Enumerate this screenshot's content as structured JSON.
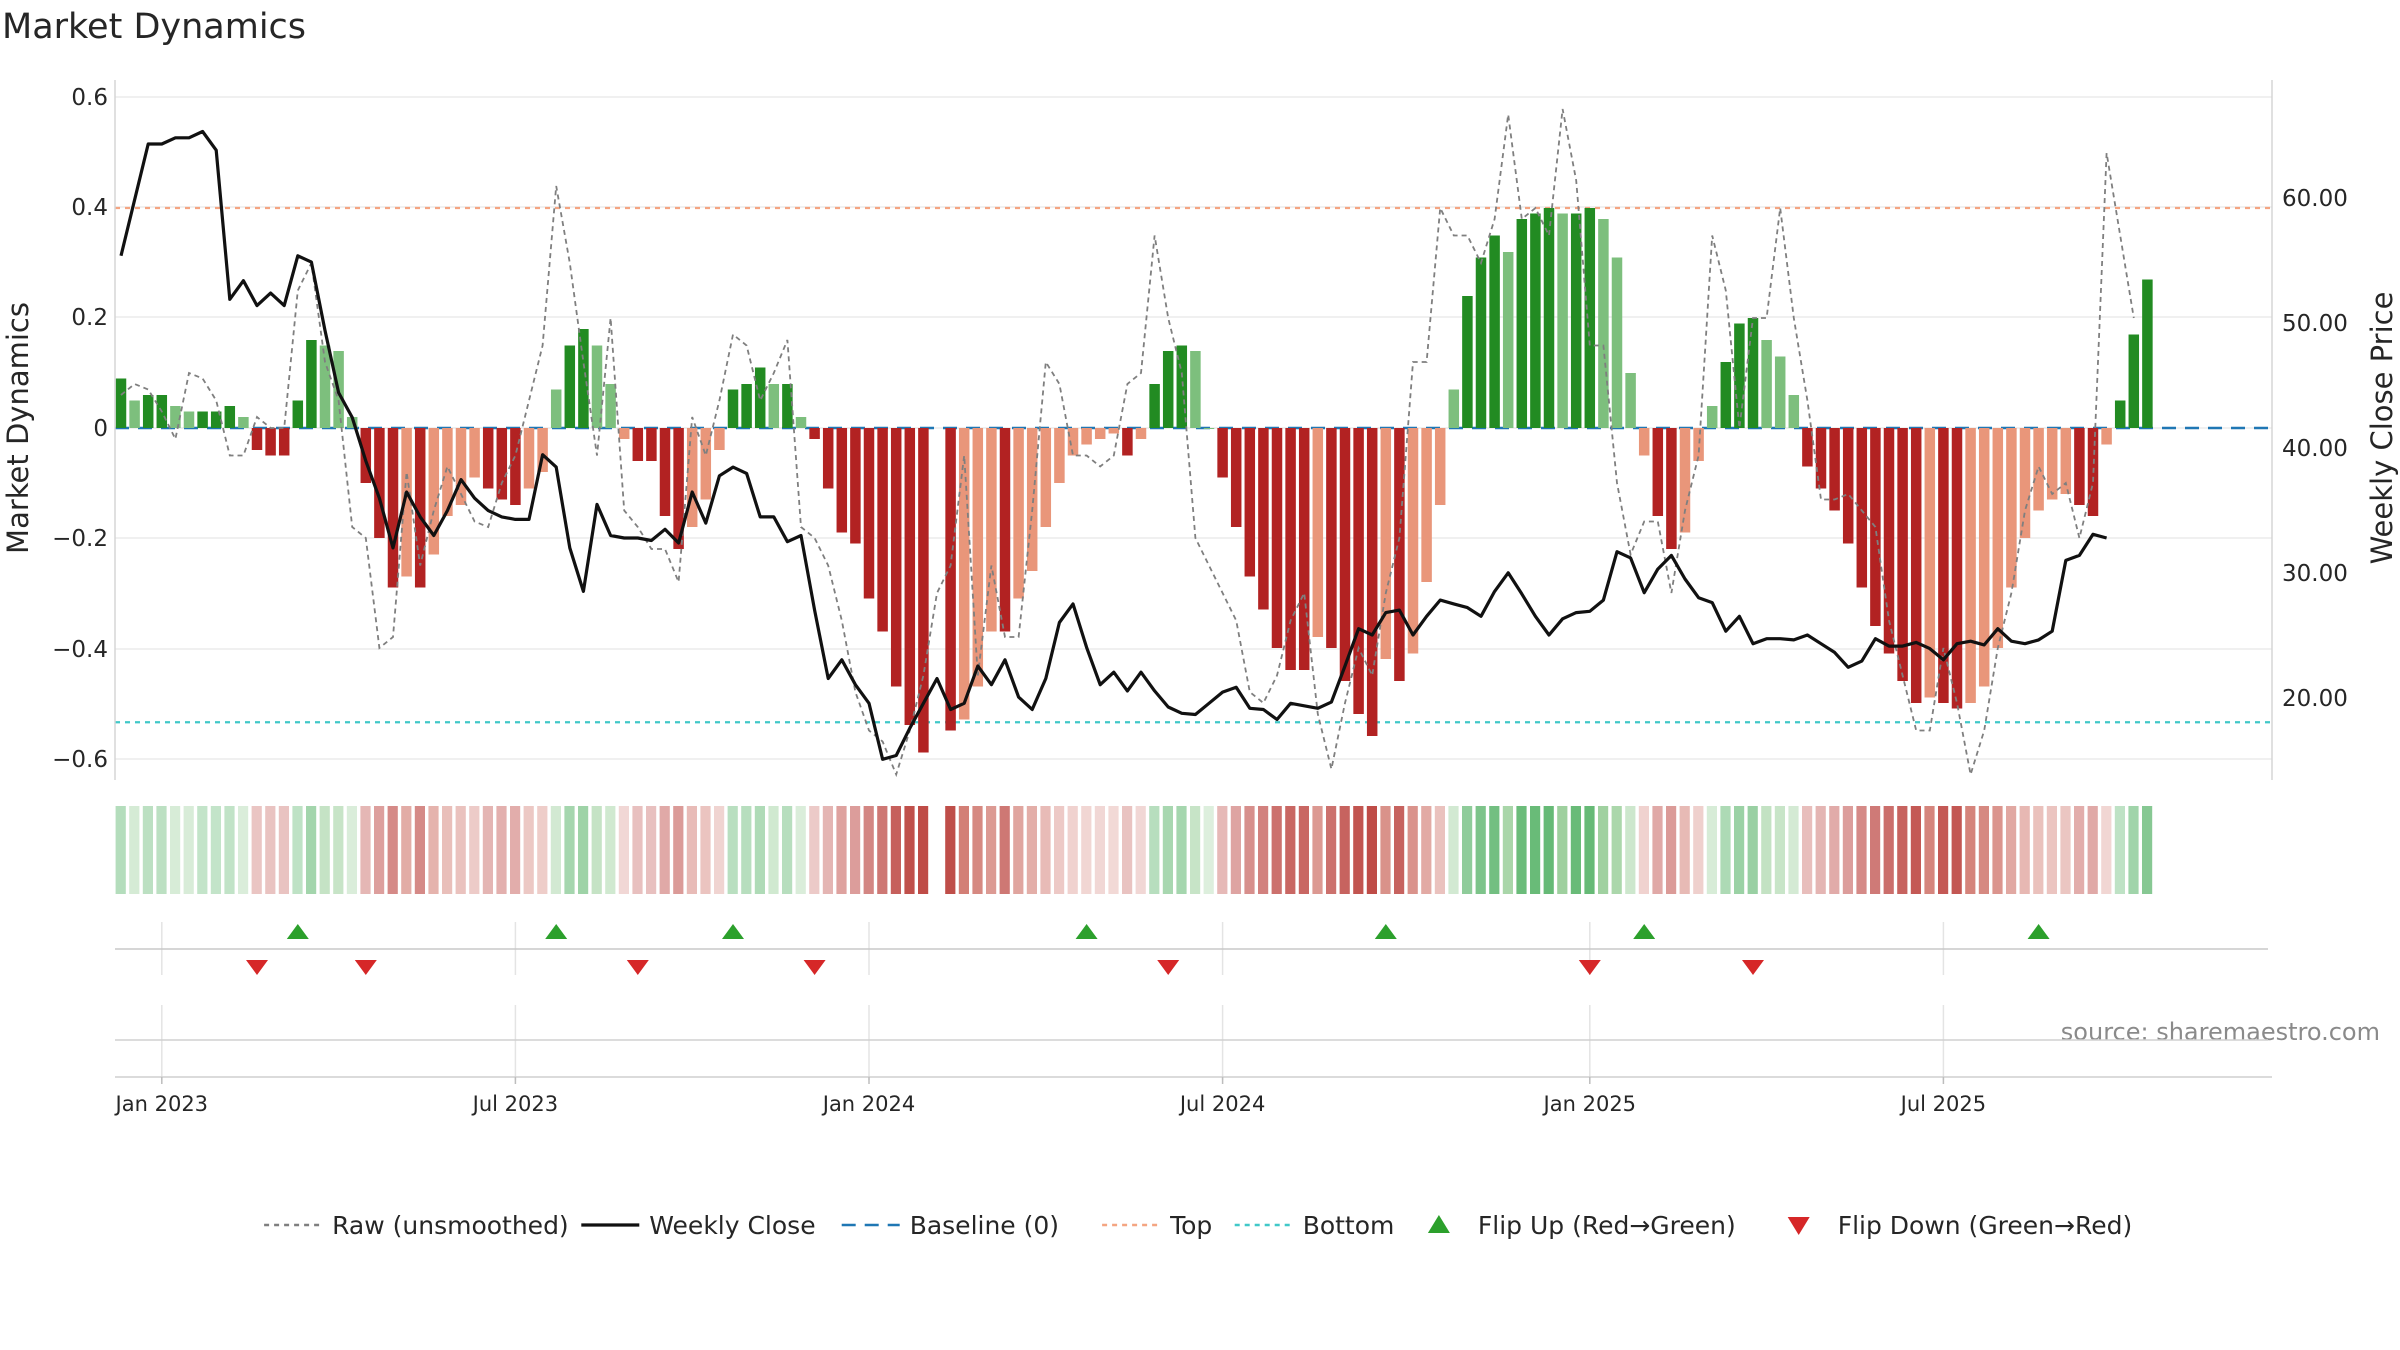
{
  "chart_data": {
    "type": "bar",
    "title": "Market Dynamics",
    "ylabel_left": "Market Dynamics",
    "ylabel_right": "Weekly Close Price",
    "source": "source: sharemaestro.com",
    "y_left_range": [
      -0.64,
      0.64
    ],
    "y_right_range": [
      12.0,
      68.0
    ],
    "y_left_ticks": [
      "0.6",
      "0.4",
      "0.2",
      "0",
      "−0.2",
      "−0.4",
      "−0.6"
    ],
    "y_right_ticks": [
      "60.00",
      "50.00",
      "40.00",
      "30.00",
      "20.00"
    ],
    "x_ticks": [
      {
        "label": "Jan 2023",
        "week": 3
      },
      {
        "label": "Jul 2023",
        "week": 29
      },
      {
        "label": "Jan 2024",
        "week": 55
      },
      {
        "label": "Jul 2024",
        "week": 81
      },
      {
        "label": "Jan 2025",
        "week": 108
      },
      {
        "label": "Jul 2025",
        "week": 134
      }
    ],
    "reference_lines": {
      "baseline": 0,
      "top": 0.4,
      "bottom": -0.535
    },
    "colors": {
      "strong_green": "#228b22",
      "light_green": "#7dbf7d",
      "strong_red": "#b22222",
      "light_red": "#e9967a",
      "raw_line": "#7f7f7f",
      "close_line": "#111111",
      "baseline": "#1f77b4",
      "top": "#f4a582",
      "bottom": "#40c8c8",
      "flip_up": "#2ca02c",
      "flip_down": "#d62728"
    },
    "series": [
      {
        "name": "Market Dynamics (smoothed)",
        "values": [
          0.09,
          0.05,
          0.06,
          0.06,
          0.04,
          0.03,
          0.03,
          0.03,
          0.04,
          0.02,
          -0.04,
          -0.05,
          -0.05,
          0.05,
          0.16,
          0.15,
          0.14,
          0.02,
          -0.1,
          -0.2,
          -0.29,
          -0.27,
          -0.29,
          -0.23,
          -0.16,
          -0.14,
          -0.09,
          -0.11,
          -0.13,
          -0.14,
          -0.11,
          -0.08,
          0.07,
          0.15,
          0.18,
          0.15,
          0.08,
          -0.02,
          -0.06,
          -0.06,
          -0.16,
          -0.22,
          -0.18,
          -0.13,
          -0.04,
          0.07,
          0.08,
          0.11,
          0.08,
          0.08,
          0.02,
          -0.02,
          -0.11,
          -0.19,
          -0.21,
          -0.31,
          -0.37,
          -0.47,
          -0.54,
          -0.59,
          null,
          -0.55,
          -0.53,
          -0.47,
          -0.37,
          -0.37,
          -0.31,
          -0.26,
          -0.18,
          -0.1,
          -0.05,
          -0.03,
          -0.02,
          -0.01,
          -0.05,
          -0.02,
          0.08,
          0.14,
          0.15,
          0.14,
          0.0,
          -0.09,
          -0.18,
          -0.27,
          -0.33,
          -0.4,
          -0.44,
          -0.44,
          -0.38,
          -0.4,
          -0.46,
          -0.52,
          -0.56,
          -0.42,
          -0.46,
          -0.41,
          -0.28,
          -0.14,
          0.07,
          0.24,
          0.31,
          0.35,
          0.32,
          0.38,
          0.39,
          0.4,
          0.39,
          0.39,
          0.4,
          0.38,
          0.31,
          0.1,
          -0.05,
          -0.16,
          -0.22,
          -0.19,
          -0.06,
          0.04,
          0.12,
          0.19,
          0.2,
          0.16,
          0.13,
          0.06,
          -0.07,
          -0.11,
          -0.15,
          -0.21,
          -0.29,
          -0.36,
          -0.41,
          -0.46,
          -0.5,
          -0.49,
          -0.5,
          -0.51,
          -0.5,
          -0.47,
          -0.4,
          -0.29,
          -0.2,
          -0.15,
          -0.13,
          -0.12,
          -0.14,
          -0.16,
          -0.03,
          0.05,
          0.17,
          0.27
        ]
      },
      {
        "name": "Raw (unsmoothed)",
        "values": [
          0.06,
          0.08,
          0.07,
          0.03,
          -0.02,
          0.1,
          0.09,
          0.05,
          -0.05,
          -0.05,
          0.02,
          0.0,
          0.0,
          0.25,
          0.3,
          0.12,
          0.05,
          -0.18,
          -0.2,
          -0.4,
          -0.38,
          -0.08,
          -0.25,
          -0.15,
          -0.07,
          -0.12,
          -0.17,
          -0.18,
          -0.1,
          -0.05,
          0.05,
          0.15,
          0.44,
          0.3,
          0.12,
          -0.05,
          0.2,
          -0.15,
          -0.18,
          -0.22,
          -0.22,
          -0.28,
          0.02,
          -0.05,
          0.05,
          0.17,
          0.15,
          0.05,
          0.1,
          0.16,
          -0.18,
          -0.2,
          -0.25,
          -0.35,
          -0.48,
          -0.55,
          -0.57,
          -0.63,
          -0.55,
          -0.45,
          -0.3,
          -0.25,
          -0.05,
          -0.45,
          -0.25,
          -0.38,
          -0.38,
          -0.15,
          0.12,
          0.08,
          -0.05,
          -0.05,
          -0.07,
          -0.05,
          0.08,
          0.1,
          0.35,
          0.2,
          0.1,
          -0.2,
          -0.25,
          -0.3,
          -0.35,
          -0.48,
          -0.5,
          -0.45,
          -0.35,
          -0.3,
          -0.52,
          -0.62,
          -0.5,
          -0.4,
          -0.45,
          -0.3,
          -0.2,
          0.12,
          0.12,
          0.4,
          0.35,
          0.35,
          0.3,
          0.38,
          0.57,
          0.38,
          0.4,
          0.35,
          0.58,
          0.45,
          0.15,
          0.15,
          -0.1,
          -0.23,
          -0.17,
          -0.17,
          -0.3,
          -0.15,
          -0.05,
          0.35,
          0.25,
          0.0,
          0.2,
          0.2,
          0.4,
          0.2,
          0.05,
          -0.13,
          -0.13,
          -0.12,
          -0.15,
          -0.18,
          -0.35,
          -0.45,
          -0.55,
          -0.55,
          -0.4,
          -0.5,
          -0.63,
          -0.55,
          -0.4,
          -0.3,
          -0.15,
          -0.07,
          -0.12,
          -0.1,
          -0.2,
          -0.1,
          0.5,
          0.35,
          0.2
        ]
      },
      {
        "name": "Weekly Close",
        "values": [
          55.5,
          60,
          64.5,
          64.5,
          65,
          65,
          65.5,
          64,
          52,
          53.5,
          51.5,
          52.5,
          51.5,
          55.5,
          55,
          49.5,
          44.5,
          42.5,
          39,
          36,
          32,
          36.5,
          34.5,
          33,
          35,
          37.5,
          36,
          35,
          34.5,
          34.3,
          34.3,
          39.5,
          38.5,
          32,
          28.5,
          35.5,
          33,
          32.8,
          32.8,
          32.6,
          33.5,
          32.4,
          36.5,
          34,
          37.8,
          38.5,
          38,
          34.5,
          34.5,
          32.5,
          33,
          27,
          21.5,
          23,
          21,
          19.5,
          15,
          15.3,
          17.5,
          19.5,
          21.5,
          19,
          19.5,
          22.5,
          21,
          23,
          20,
          19,
          21.5,
          26,
          27.5,
          24,
          21,
          22,
          20.5,
          22,
          20.5,
          19.2,
          18.7,
          18.6,
          19.5,
          20.4,
          20.8,
          19.1,
          19,
          18.2,
          19.5,
          19.3,
          19.1,
          19.6,
          22.5,
          25.5,
          25,
          26.8,
          27,
          25,
          26.5,
          27.8,
          27.5,
          27.2,
          26.5,
          28.5,
          30,
          28.3,
          26.5,
          25,
          26.3,
          26.8,
          26.9,
          27.8,
          31.7,
          31.2,
          28.4,
          30.3,
          31.4,
          29.5,
          28,
          27.6,
          25.3,
          26.5,
          24.3,
          24.7,
          24.7,
          24.6,
          25,
          24.3,
          23.6,
          22.4,
          22.9,
          24.7,
          24.1,
          24.1,
          24.4,
          23.9,
          23,
          24.3,
          24.5,
          24.2,
          25.5,
          24.5,
          24.3,
          24.6,
          25.3,
          31,
          31.4,
          33.1,
          32.8
        ]
      }
    ],
    "flip_up_weeks": [
      13,
      32,
      45,
      71,
      93,
      112,
      141
    ],
    "flip_down_weeks": [
      10,
      18,
      38,
      51,
      77,
      108,
      120
    ],
    "legend": [
      {
        "label": "Raw (unsmoothed)",
        "style": "dotted",
        "color": "#7f7f7f"
      },
      {
        "label": "Weekly Close",
        "style": "solid",
        "color": "#111111"
      },
      {
        "label": "Baseline (0)",
        "style": "dashed",
        "color": "#1f77b4"
      },
      {
        "label": "Top",
        "style": "dotted",
        "color": "#f4a582"
      },
      {
        "label": "Bottom",
        "style": "dotted",
        "color": "#40c8c8"
      },
      {
        "label": "Flip Up (Red→Green)",
        "style": "triangle-up",
        "color": "#2ca02c"
      },
      {
        "label": "Flip Down (Green→Red)",
        "style": "triangle-down",
        "color": "#d62728"
      }
    ]
  }
}
